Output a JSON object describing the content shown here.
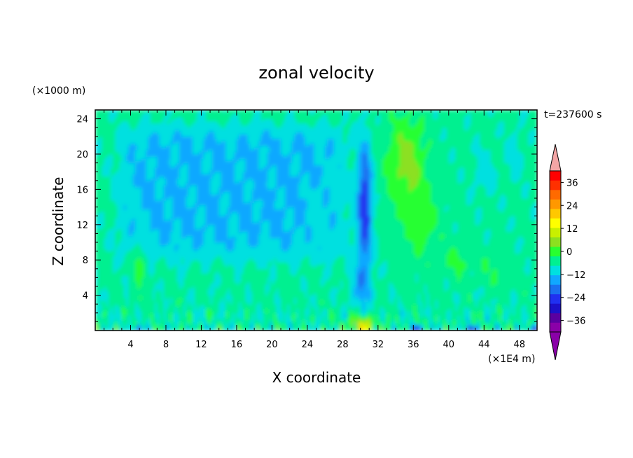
{
  "chart_data": {
    "type": "heatmap",
    "title": "zonal velocity",
    "xlabel": "X coordinate",
    "ylabel": "Z coordinate",
    "x_unit": "(×1E4 m)",
    "y_unit": "(×1000 m)",
    "time_label": "t=237600 s",
    "xlim": [
      0,
      50
    ],
    "ylim": [
      0,
      25
    ],
    "x_ticks": [
      4,
      8,
      12,
      16,
      20,
      24,
      28,
      32,
      36,
      40,
      44,
      48
    ],
    "y_ticks": [
      4,
      8,
      12,
      16,
      20,
      24
    ],
    "x_tick_labels": [
      "4",
      "8",
      "12",
      "16",
      "20",
      "24",
      "28",
      "32",
      "36",
      "40",
      "44",
      "48"
    ],
    "y_tick_labels": [
      "4",
      "8",
      "12",
      "16",
      "20",
      "24"
    ],
    "colorbar": {
      "min": -42,
      "max": 42,
      "step": 6,
      "tick_values": [
        36,
        24,
        12,
        0,
        -12,
        -24,
        -36
      ],
      "tick_labels": [
        "36",
        "24",
        "12",
        "0",
        "−12",
        "−24",
        "−36"
      ],
      "colors": [
        "#8a00a8",
        "#5a00a0",
        "#1c10c8",
        "#2030f0",
        "#1a70f0",
        "#10a8ff",
        "#00e0e0",
        "#00f090",
        "#28ff30",
        "#8ce020",
        "#c8f000",
        "#ffff00",
        "#ffc800",
        "#ff9800",
        "#ff6a00",
        "#ff3000",
        "#ff0000"
      ],
      "over_color": "#f3a5a5",
      "under_color": "#8a00a8"
    },
    "field_features": [
      {
        "desc": "background weak westerly",
        "x": [
          0,
          50
        ],
        "z": [
          0,
          25
        ],
        "value": 0
      },
      {
        "desc": "mid-level easterly region",
        "x": [
          3,
          28
        ],
        "z": [
          8,
          23
        ],
        "value": -7
      },
      {
        "desc": "easterly jet core",
        "x": [
          29.5,
          31.5
        ],
        "z": [
          5,
          22
        ],
        "value": -22
      },
      {
        "desc": "westerly band",
        "x": [
          33,
          38
        ],
        "z": [
          12,
          25
        ],
        "value": 12
      },
      {
        "desc": "surface westerly maximum",
        "x": [
          29,
          32
        ],
        "z": [
          0,
          2
        ],
        "value": 20
      },
      {
        "desc": "lower westerly streak",
        "x": [
          4,
          6
        ],
        "z": [
          4,
          12
        ],
        "value": 9
      }
    ]
  }
}
